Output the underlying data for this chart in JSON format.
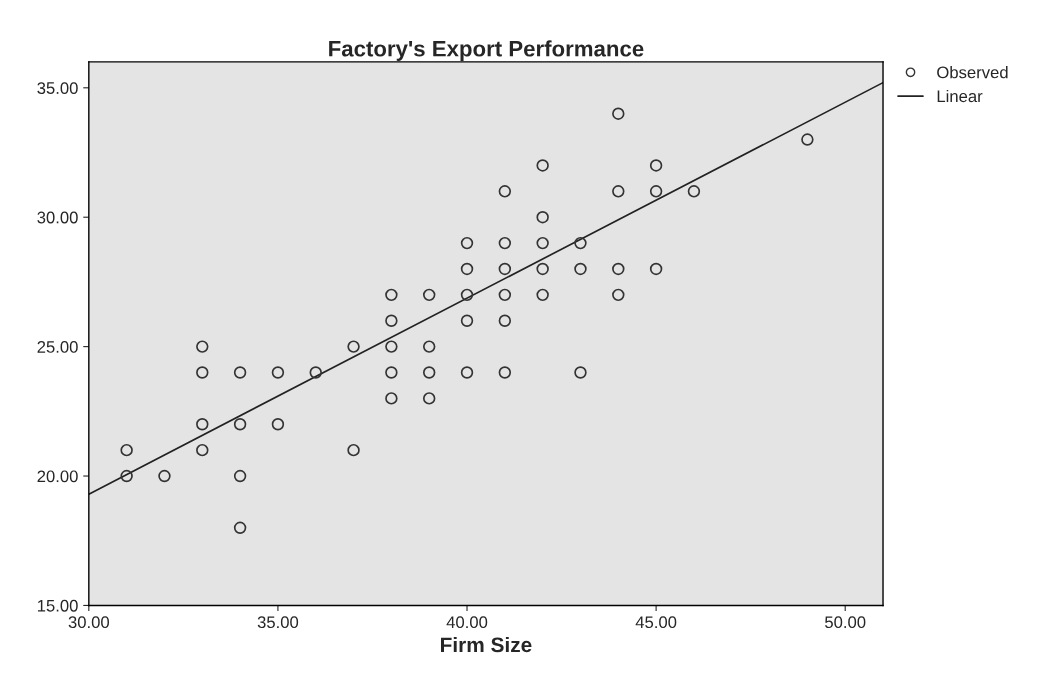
{
  "chart_data": {
    "type": "scatter",
    "title": "Factory's Export Performance",
    "xlabel": "Firm Size",
    "series": [
      {
        "name": "Observed",
        "color": "#333333",
        "marker": "circle",
        "x": [
          31,
          31,
          32,
          33,
          33,
          33,
          33,
          34,
          34,
          34,
          34,
          35,
          35,
          36,
          37,
          37,
          38,
          38,
          38,
          38,
          38,
          39,
          39,
          39,
          39,
          40,
          40,
          40,
          40,
          40,
          41,
          41,
          41,
          41,
          41,
          41,
          42,
          42,
          42,
          42,
          42,
          43,
          43,
          43,
          44,
          44,
          44,
          44,
          45,
          45,
          45,
          46,
          49
        ],
        "values": [
          21,
          20,
          20,
          25,
          24,
          22,
          21,
          24,
          22,
          20,
          18,
          24,
          22,
          24,
          25,
          21,
          27,
          26,
          25,
          24,
          23,
          27,
          25,
          24,
          23,
          29,
          28,
          27,
          26,
          24,
          31,
          29,
          28,
          27,
          26,
          24,
          32,
          30,
          29,
          28,
          27,
          29,
          28,
          24,
          34,
          31,
          28,
          27,
          32,
          31,
          28,
          31,
          33
        ]
      },
      {
        "name": "Linear",
        "type": "line",
        "color": "#222222",
        "marker": "none",
        "x": [
          30,
          51
        ],
        "values": [
          19.3,
          35.2
        ]
      }
    ],
    "xlim": [
      30,
      51
    ],
    "xticks": [
      {
        "value": 30,
        "label": "30.00"
      },
      {
        "value": 35,
        "label": "35.00"
      },
      {
        "value": 40,
        "label": "40.00"
      },
      {
        "value": 45,
        "label": "45.00"
      },
      {
        "value": 50,
        "label": "50.00"
      }
    ],
    "ylim": [
      15,
      36
    ],
    "yticks": [
      {
        "value": 15,
        "label": "15.00"
      },
      {
        "value": 20,
        "label": "20.00"
      },
      {
        "value": 25,
        "label": "25.00"
      },
      {
        "value": 30,
        "label": "30.00"
      },
      {
        "value": 35,
        "label": "35.00"
      }
    ],
    "grid": false,
    "legend": "top right"
  }
}
